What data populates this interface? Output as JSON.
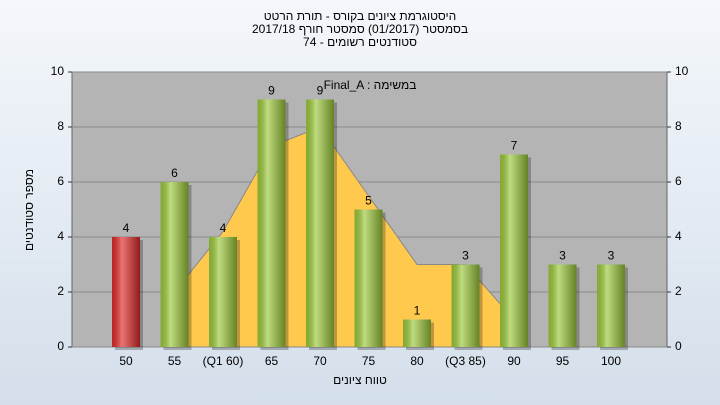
{
  "chart_data": {
    "type": "bar",
    "title": "היסטוגרמת ציונים בקורס - תורת הרטט",
    "subtitle": "בסמסטר (01/2017) סמסטר חורף 2017/18",
    "subtitle2": "סטודנטים רשומים - 74",
    "annotation": "Final_A : במשימה",
    "x_label": "טווח ציונים",
    "y_label": "מספר סטודנטים",
    "categories": [
      "50",
      "55",
      "(Q1 60)",
      "65",
      "70",
      "75",
      "80",
      "(Q3 85)",
      "90",
      "95",
      "100"
    ],
    "series": [
      {
        "values": [
          4,
          6,
          4,
          9,
          9,
          5,
          1,
          3,
          7,
          3,
          3
        ],
        "colors": [
          "#e02a2a",
          "#9cc93a",
          "#9cc93a",
          "#9cc93a",
          "#9cc93a",
          "#9cc93a",
          "#9cc93a",
          "#9cc93a",
          "#9cc93a",
          "#9cc93a",
          "#9cc93a"
        ]
      },
      {
        "type": "area",
        "color": "#ffc94d",
        "values": [
          null,
          2,
          4.2,
          7.3,
          8,
          5.5,
          3,
          3,
          1,
          null,
          null
        ]
      }
    ],
    "ylim": [
      0,
      10
    ],
    "yticks": [
      0,
      2,
      4,
      6,
      8,
      10
    ],
    "y2lim": [
      0,
      10
    ],
    "y2ticks": [
      0,
      2,
      4,
      6,
      8,
      10
    ],
    "grid": true
  }
}
